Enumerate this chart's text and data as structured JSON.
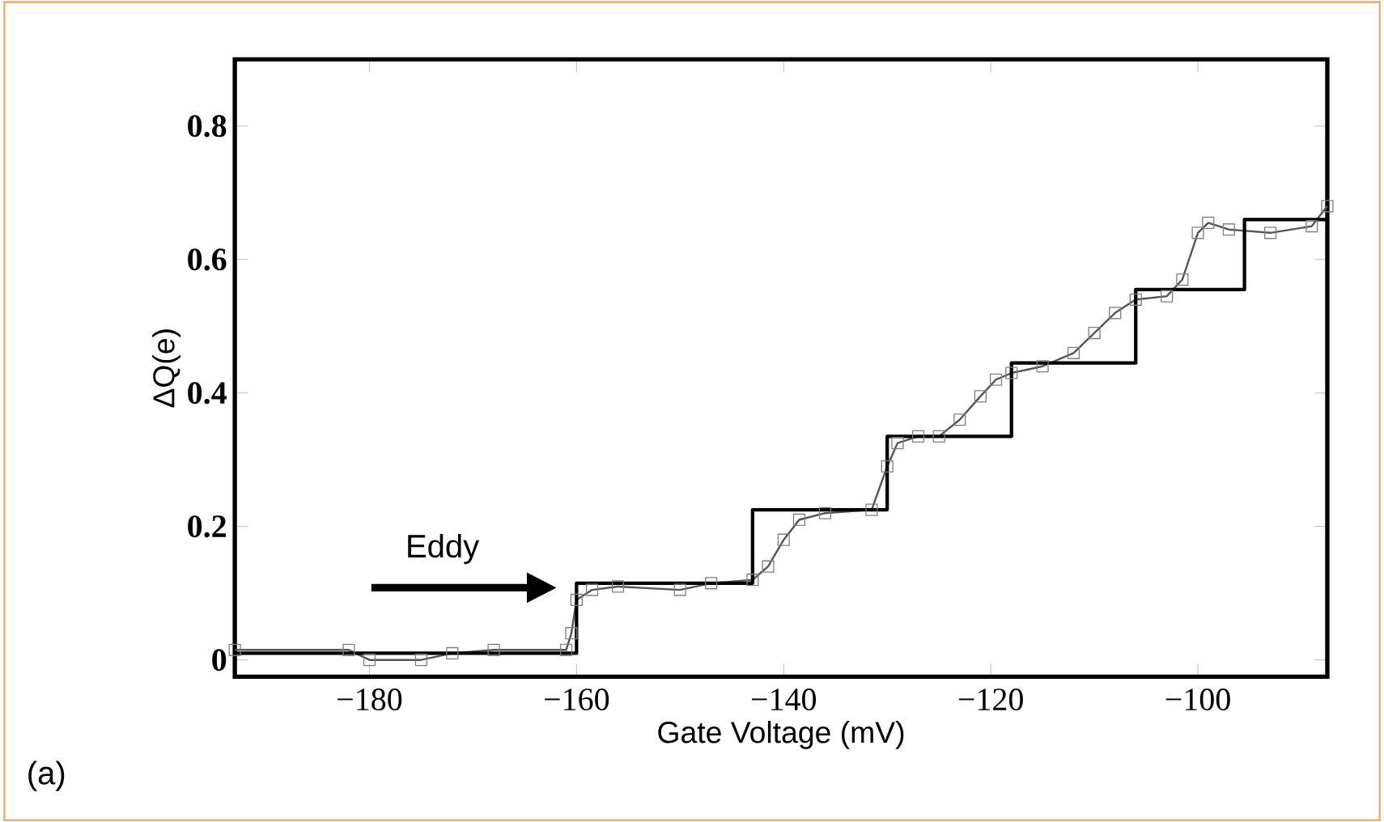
{
  "chart_data": {
    "type": "line",
    "xlabel": "Gate Voltage (mV)",
    "ylabel": "ΔQ(e)",
    "xlim": [
      -193,
      -87.5
    ],
    "ylim": [
      -0.025,
      0.9
    ],
    "xticks": [
      {
        "value": -180,
        "label": "−180"
      },
      {
        "value": -160,
        "label": "−160"
      },
      {
        "value": -140,
        "label": "−140"
      },
      {
        "value": -120,
        "label": "−120"
      },
      {
        "value": -100,
        "label": "−100"
      }
    ],
    "yticks": [
      0,
      0.2,
      0.4,
      0.6,
      0.8
    ],
    "series": [
      {
        "color": "#555555",
        "marker": "square",
        "x": [
          -193,
          -182,
          -180,
          -175,
          -172,
          -168,
          -161,
          -160.5,
          -160,
          -158.5,
          -156,
          -150,
          -147,
          -143,
          -141.5,
          -140,
          -138.5,
          -136,
          -131.5,
          -130,
          -129,
          -127,
          -125,
          -123,
          -121,
          -119.5,
          -118,
          -115,
          -112,
          -110,
          -108,
          -106,
          -103,
          -101.5,
          -100,
          -99,
          -97,
          -93,
          -89,
          -87.5
        ],
        "values": [
          0.015,
          0.015,
          0.0,
          0.0,
          0.01,
          0.015,
          0.015,
          0.04,
          0.09,
          0.105,
          0.11,
          0.105,
          0.115,
          0.12,
          0.14,
          0.18,
          0.21,
          0.22,
          0.225,
          0.29,
          0.325,
          0.335,
          0.335,
          0.36,
          0.395,
          0.42,
          0.43,
          0.44,
          0.46,
          0.49,
          0.52,
          0.54,
          0.545,
          0.57,
          0.64,
          0.655,
          0.645,
          0.64,
          0.65,
          0.68
        ]
      },
      {
        "type": "step",
        "color": "#000000",
        "marker": "none",
        "x": [
          -193,
          -160,
          -143,
          -130,
          -118,
          -106,
          -95.5,
          -87.5
        ],
        "values": [
          0.01,
          0.115,
          0.225,
          0.335,
          0.445,
          0.555,
          0.66,
          0.66
        ]
      }
    ],
    "annotations": [
      "Eddy",
      "(a)"
    ]
  }
}
